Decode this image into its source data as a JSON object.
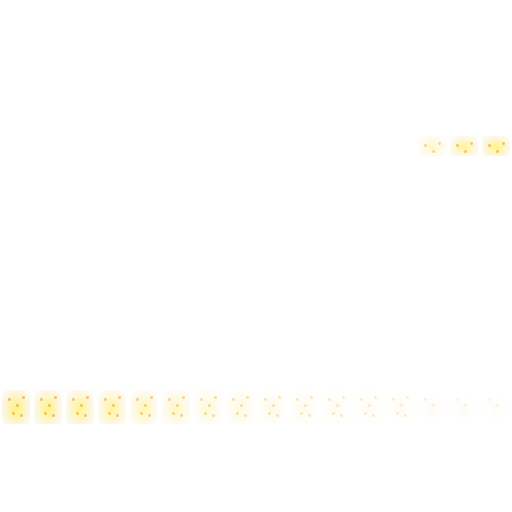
{
  "sprite_sheet": {
    "background": "#ffffff",
    "glow_color": "#fff27a",
    "glow_soft": "#fbf4d8",
    "fade_end": "#fbf7f4",
    "spark_color": "#f2b74b",
    "bottom_row": {
      "frames": [
        {
          "intensity": 1.0
        },
        {
          "intensity": 0.95
        },
        {
          "intensity": 0.9
        },
        {
          "intensity": 0.84
        },
        {
          "intensity": 0.7
        },
        {
          "intensity": 0.6
        },
        {
          "intensity": 0.45
        },
        {
          "intensity": 0.38
        },
        {
          "intensity": 0.3
        },
        {
          "intensity": 0.25
        },
        {
          "intensity": 0.2
        },
        {
          "intensity": 0.16
        },
        {
          "intensity": 0.12
        },
        {
          "intensity": 0.08
        },
        {
          "intensity": 0.05
        },
        {
          "intensity": 0.03
        }
      ]
    },
    "top_row": {
      "frames": [
        {
          "intensity": 0.55
        },
        {
          "intensity": 0.85
        },
        {
          "intensity": 0.95
        }
      ]
    }
  }
}
